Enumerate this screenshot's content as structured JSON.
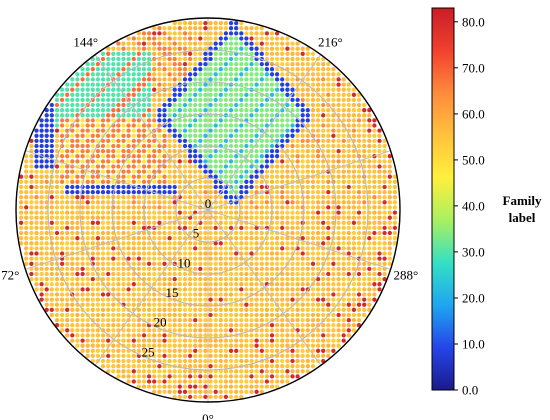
{
  "chart_data": {
    "type": "scatter",
    "projection": "polar",
    "angular_axis": {
      "unit": "°",
      "zero_position": "bottom",
      "labels": [
        {
          "angle": 0,
          "text": "0°"
        },
        {
          "angle": 72,
          "text": "72°"
        },
        {
          "angle": 144,
          "text": "144°"
        },
        {
          "angle": 216,
          "text": "216°"
        },
        {
          "angle": 288,
          "text": "288°"
        }
      ],
      "spokes_every_deg": 36
    },
    "radial_axis": {
      "range": [
        0,
        30
      ],
      "gridline_rings": [
        5,
        10,
        15,
        20,
        25
      ],
      "tick_labels": [
        {
          "value": 0,
          "text": "0"
        },
        {
          "value": 5,
          "text": "5"
        },
        {
          "value": 10,
          "text": "10"
        },
        {
          "value": 15,
          "text": "15"
        },
        {
          "value": 20,
          "text": "20"
        },
        {
          "value": 25,
          "text": "25"
        }
      ]
    },
    "grid": true,
    "point_grid": {
      "spacing": 0.8,
      "rule": "all lattice points inside r <= 30 carry a family label"
    },
    "background_label": 55,
    "families": [
      {
        "label": 32,
        "region": "rhombus",
        "description_area": "upper-centre (angles ~150-215)",
        "x_range": [
          -6,
          14
        ],
        "y_range": [
          -30,
          -5
        ]
      },
      {
        "label": 65,
        "region": "band",
        "description_area": "left-centre",
        "x_range": [
          -23,
          -7
        ],
        "y_range": [
          -16,
          -4
        ]
      },
      {
        "label": 30,
        "region": "band",
        "description_area": "upper-left",
        "x_range": [
          -26,
          -10
        ],
        "y_range": [
          -26,
          -12
        ]
      },
      {
        "label": 66,
        "region": "band",
        "description_area": "upper stripes",
        "x_range": [
          -22,
          -2
        ],
        "y_range": [
          -29,
          -17
        ]
      },
      {
        "label": 8,
        "region": "edge",
        "description_area": "outline of left block",
        "x_range": [
          -26,
          -4
        ],
        "y_range": [
          -22,
          4
        ]
      },
      {
        "label": 8,
        "region": "edge",
        "description_area": "outline of central rhombus",
        "x_range": [
          -2,
          10
        ],
        "y_range": [
          -24,
          -1
        ]
      },
      {
        "label": 80,
        "region": "scatter",
        "description_area": "sparse individual points across lower half and rim"
      }
    ],
    "colorbar": {
      "label_lines": [
        "Family",
        "label"
      ],
      "range": [
        0.0,
        83.0
      ],
      "ticks": [
        "0.0",
        "10.0",
        "20.0",
        "30.0",
        "40.0",
        "50.0",
        "60.0",
        "70.0",
        "80.0"
      ],
      "colormap": "jet",
      "stops": [
        "#1a1a8c",
        "#2545e8",
        "#1fa6f0",
        "#34e0c4",
        "#a8f060",
        "#fff03c",
        "#ffc23c",
        "#ff8a3c",
        "#f2402e",
        "#c81e28"
      ]
    }
  }
}
